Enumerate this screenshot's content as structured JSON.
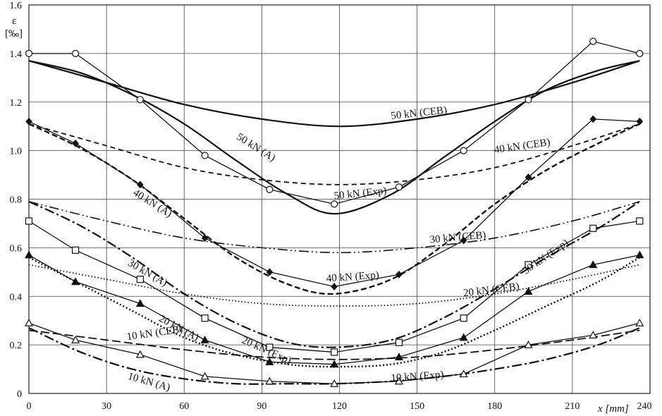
{
  "chart_data": {
    "type": "line",
    "ylabel": "ε\n[‰]",
    "xlabel": "x [mm]",
    "xlim": [
      0,
      240
    ],
    "ylim": [
      0,
      1.6
    ],
    "xticks": [
      0,
      30,
      60,
      90,
      120,
      150,
      180,
      210,
      240
    ],
    "yticks": [
      0,
      0.2,
      0.4,
      0.6,
      0.8,
      1.0,
      1.2,
      1.4,
      1.6
    ],
    "ytick_labels": [
      "0",
      "0.2",
      "0.4",
      "0.6",
      "0.8",
      "1.0",
      "1.2",
      "1.4",
      "1.6"
    ],
    "grid": true,
    "series": [
      {
        "name": "50 kN (CEB)",
        "style": "solid-thick",
        "x": [
          0,
          30,
          60,
          90,
          120,
          150,
          180,
          210,
          236
        ],
        "y": [
          1.37,
          1.28,
          1.19,
          1.13,
          1.1,
          1.13,
          1.19,
          1.28,
          1.37
        ]
      },
      {
        "name": "50 kN (A)",
        "style": "solid-thick",
        "x": [
          0,
          20,
          40,
          60,
          80,
          100,
          118,
          140,
          160,
          180,
          200,
          220,
          236
        ],
        "y": [
          1.37,
          1.32,
          1.23,
          1.11,
          0.96,
          0.82,
          0.74,
          0.82,
          0.97,
          1.12,
          1.25,
          1.33,
          1.37
        ]
      },
      {
        "name": "50 kN (Exp)",
        "style": "solid",
        "marker": "circle-open",
        "x": [
          0,
          18,
          43,
          68,
          93,
          118,
          143,
          168,
          193,
          218,
          236
        ],
        "y": [
          1.4,
          1.4,
          1.21,
          0.98,
          0.84,
          0.78,
          0.85,
          1.0,
          1.21,
          1.45,
          1.4
        ]
      },
      {
        "name": "40 kN (CEB)",
        "style": "dashed",
        "x": [
          0,
          30,
          60,
          90,
          120,
          150,
          180,
          210,
          236
        ],
        "y": [
          1.11,
          1.02,
          0.93,
          0.88,
          0.86,
          0.88,
          0.93,
          1.02,
          1.11
        ]
      },
      {
        "name": "40 kN (A)",
        "style": "dashed-thick",
        "x": [
          0,
          20,
          40,
          60,
          80,
          100,
          118,
          140,
          160,
          180,
          200,
          220,
          236
        ],
        "y": [
          1.11,
          1.01,
          0.88,
          0.72,
          0.56,
          0.45,
          0.41,
          0.47,
          0.61,
          0.78,
          0.92,
          1.03,
          1.11
        ]
      },
      {
        "name": "40 kN (Exp)",
        "style": "solid",
        "marker": "diamond-filled",
        "x": [
          0,
          18,
          43,
          68,
          93,
          118,
          143,
          168,
          193,
          218,
          236
        ],
        "y": [
          1.12,
          1.03,
          0.86,
          0.64,
          0.5,
          0.44,
          0.49,
          0.63,
          0.89,
          1.13,
          1.12
        ]
      },
      {
        "name": "30 kN (CEB)",
        "style": "dash-dot-dot",
        "x": [
          0,
          30,
          60,
          90,
          120,
          150,
          180,
          210,
          236
        ],
        "y": [
          0.79,
          0.71,
          0.64,
          0.6,
          0.58,
          0.6,
          0.64,
          0.71,
          0.79
        ]
      },
      {
        "name": "30 kN (A)",
        "style": "dash-dot-thick",
        "x": [
          0,
          20,
          40,
          60,
          80,
          100,
          118,
          140,
          160,
          180,
          200,
          220,
          236
        ],
        "y": [
          0.79,
          0.69,
          0.56,
          0.41,
          0.29,
          0.21,
          0.19,
          0.22,
          0.31,
          0.43,
          0.56,
          0.68,
          0.79
        ]
      },
      {
        "name": "30 kN (Exp)",
        "style": "solid",
        "marker": "square-open",
        "x": [
          0,
          18,
          43,
          68,
          93,
          118,
          143,
          168,
          193,
          218,
          236
        ],
        "y": [
          0.71,
          0.59,
          0.47,
          0.31,
          0.19,
          0.17,
          0.21,
          0.31,
          0.53,
          0.68,
          0.71
        ]
      },
      {
        "name": "20 kN (CEB)",
        "style": "dotted",
        "x": [
          0,
          30,
          60,
          90,
          120,
          150,
          180,
          210,
          236
        ],
        "y": [
          0.53,
          0.47,
          0.41,
          0.37,
          0.36,
          0.37,
          0.41,
          0.47,
          0.53
        ]
      },
      {
        "name": "20 kN (A)",
        "style": "dotted-thick",
        "x": [
          0,
          20,
          40,
          60,
          80,
          100,
          118,
          140,
          160,
          180,
          200,
          220,
          236
        ],
        "y": [
          0.56,
          0.45,
          0.34,
          0.23,
          0.16,
          0.12,
          0.11,
          0.12,
          0.17,
          0.26,
          0.36,
          0.46,
          0.56
        ]
      },
      {
        "name": "20 kN (Exp)",
        "style": "solid",
        "marker": "triangle-filled",
        "x": [
          0,
          18,
          43,
          68,
          93,
          118,
          143,
          168,
          193,
          218,
          236
        ],
        "y": [
          0.57,
          0.46,
          0.37,
          0.22,
          0.13,
          0.12,
          0.15,
          0.23,
          0.42,
          0.53,
          0.57
        ]
      },
      {
        "name": "10 kN (CEB)",
        "style": "dash-long",
        "x": [
          0,
          30,
          60,
          90,
          120,
          150,
          180,
          210,
          236
        ],
        "y": [
          0.26,
          0.22,
          0.18,
          0.15,
          0.14,
          0.15,
          0.18,
          0.22,
          0.26
        ]
      },
      {
        "name": "10 kN (A)",
        "style": "dash-dot-thick",
        "x": [
          0,
          20,
          40,
          60,
          80,
          100,
          118,
          140,
          160,
          180,
          200,
          220,
          236
        ],
        "y": [
          0.27,
          0.17,
          0.1,
          0.06,
          0.04,
          0.04,
          0.04,
          0.05,
          0.07,
          0.1,
          0.14,
          0.2,
          0.27
        ]
      },
      {
        "name": "10 kN (Exp)",
        "style": "solid",
        "marker": "triangle-open",
        "x": [
          0,
          18,
          43,
          68,
          93,
          118,
          143,
          168,
          193,
          218,
          236
        ],
        "y": [
          0.29,
          0.22,
          0.16,
          0.07,
          0.05,
          0.04,
          0.05,
          0.08,
          0.2,
          0.24,
          0.29
        ]
      }
    ],
    "annotations": [
      {
        "text": "50 kN (CEB)",
        "x": 140,
        "y": 1.13
      },
      {
        "text": "50 kN (A)",
        "x": 80,
        "y": 1.05
      },
      {
        "text": "50 kN (Exp)",
        "x": 118,
        "y": 0.8
      },
      {
        "text": "40 kN (CEB)",
        "x": 180,
        "y": 0.99
      },
      {
        "text": "40 kN (A)",
        "x": 40,
        "y": 0.82
      },
      {
        "text": "40 kN (Exp)",
        "x": 115,
        "y": 0.46
      },
      {
        "text": "30 kN (CEB)",
        "x": 155,
        "y": 0.62
      },
      {
        "text": "30 kN (A)",
        "x": 38,
        "y": 0.53
      },
      {
        "text": "30 kN (Exp)",
        "x": 192,
        "y": 0.49
      },
      {
        "text": "20 kN (CEB)",
        "x": 168,
        "y": 0.4
      },
      {
        "text": "20 kN (A)",
        "x": 50,
        "y": 0.3
      },
      {
        "text": "20 kN (Exp)",
        "x": 82,
        "y": 0.21
      },
      {
        "text": "10 kN (CEB)",
        "x": 38,
        "y": 0.22
      },
      {
        "text": "10 kN (A)",
        "x": 38,
        "y": 0.06
      },
      {
        "text": "10 kN (Exp)",
        "x": 140,
        "y": 0.05
      }
    ]
  }
}
